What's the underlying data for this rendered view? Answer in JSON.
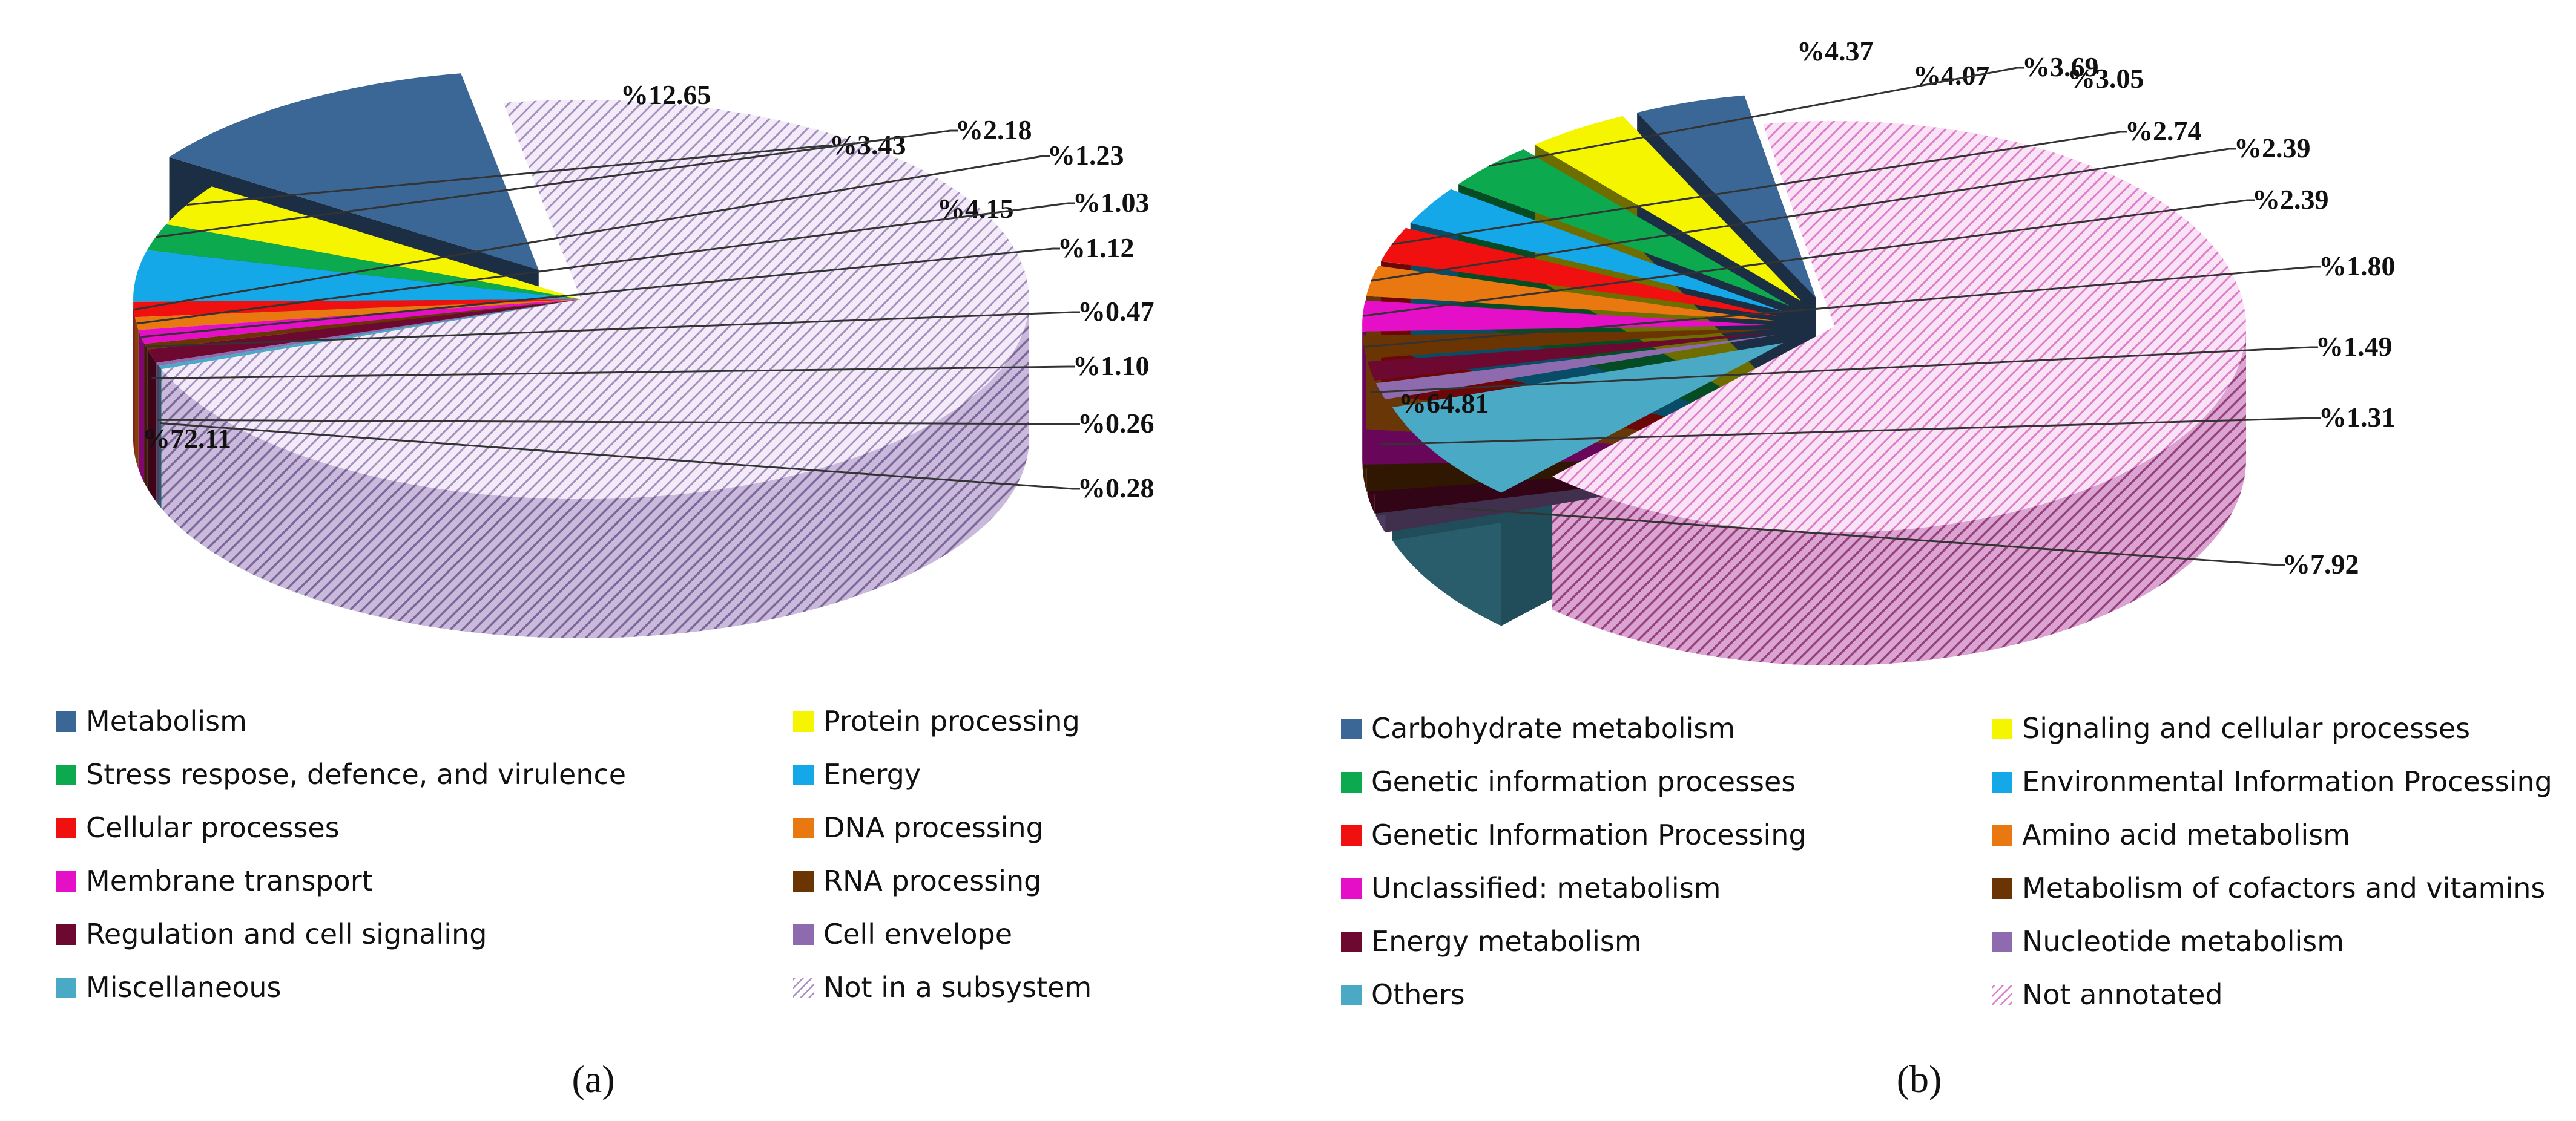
{
  "chart_data": [
    {
      "type": "pie",
      "panel_label": "(a)",
      "legend_position": "bottom",
      "labels": [
        "Metabolism",
        "Protein processing",
        "Stress respose, defence, and virulence",
        "Energy",
        "Cellular processes",
        "DNA processing",
        "Membrane transport",
        "RNA processing",
        "Regulation and cell signaling",
        "Cell envelope",
        "Miscellaneous",
        "Not in a subsystem"
      ],
      "values": [
        12.65,
        3.43,
        2.18,
        4.15,
        1.23,
        1.03,
        1.12,
        0.47,
        1.1,
        0.26,
        0.28,
        72.11
      ],
      "value_labels": [
        "%12.65",
        "%3.43",
        "%2.18",
        "%4.15",
        "%1.23",
        "%1.03",
        "%1.12",
        "%0.47",
        "%1.10",
        "%0.26",
        "%0.28",
        "%72.11"
      ],
      "colors": [
        "#3b6796",
        "#f5f500",
        "#0ca94f",
        "#14a8e8",
        "#f01010",
        "#e8780f",
        "#e60fc8",
        "#6b3403",
        "#6d0930",
        "#8e6bae",
        "#4aa9c5",
        "#d8c6e6"
      ],
      "hatched": [
        false,
        false,
        false,
        false,
        false,
        false,
        false,
        false,
        false,
        false,
        false,
        true
      ],
      "exploded": [
        true,
        false,
        false,
        false,
        false,
        false,
        false,
        false,
        false,
        false,
        false,
        false
      ]
    },
    {
      "type": "pie",
      "panel_label": "(b)",
      "legend_position": "bottom",
      "labels": [
        "Carbohydrate metabolism",
        "Signaling and cellular processes",
        "Genetic information processes",
        "Environmental Information Processing",
        "Genetic Information Processing",
        "Amino acid metabolism",
        "Unclassified: metabolism",
        "Metabolism of cofactors and vitamins",
        "Energy metabolism",
        "Nucleotide metabolism",
        "Others",
        "Not annotated"
      ],
      "values": [
        4.37,
        4.07,
        3.69,
        3.05,
        2.74,
        2.39,
        2.39,
        1.8,
        1.49,
        1.31,
        7.92,
        64.81
      ],
      "value_labels": [
        "%4.37",
        "%4.07",
        "%3.69",
        "%3.05",
        "%2.74",
        "%2.39",
        "%2.39",
        "%1.80",
        "%1.49",
        "%1.31",
        "%7.92",
        "%64.81"
      ],
      "colors": [
        "#3b6796",
        "#f5f500",
        "#0ca94f",
        "#14a8e8",
        "#f01010",
        "#e8780f",
        "#e60fc8",
        "#6b3403",
        "#6d0930",
        "#8e6bae",
        "#4aa9c5",
        "#f2a8e6"
      ],
      "hatched": [
        false,
        false,
        false,
        false,
        false,
        false,
        false,
        false,
        false,
        false,
        false,
        true
      ],
      "exploded": [
        true,
        true,
        true,
        true,
        true,
        true,
        true,
        true,
        true,
        true,
        true,
        false
      ]
    }
  ]
}
